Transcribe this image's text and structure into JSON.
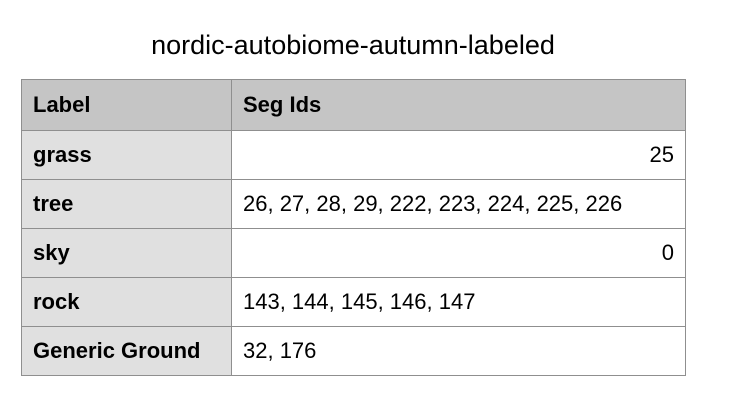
{
  "title": "nordic-autobiome-autumn-labeled",
  "table": {
    "headers": [
      "Label",
      "Seg Ids"
    ],
    "rows": [
      {
        "label": "grass",
        "seg_ids": "25",
        "align": "right"
      },
      {
        "label": "tree",
        "seg_ids": "26, 27, 28, 29, 222, 223, 224, 225, 226",
        "align": "left"
      },
      {
        "label": "sky",
        "seg_ids": "0",
        "align": "right"
      },
      {
        "label": "rock",
        "seg_ids": "143, 144, 145, 146, 147",
        "align": "left"
      },
      {
        "label": "Generic Ground",
        "seg_ids": "32, 176",
        "align": "left"
      }
    ]
  },
  "colors": {
    "header_bg": "#c5c5c5",
    "label_col_bg": "#e0e0e0",
    "border": "#8f8f8f"
  }
}
